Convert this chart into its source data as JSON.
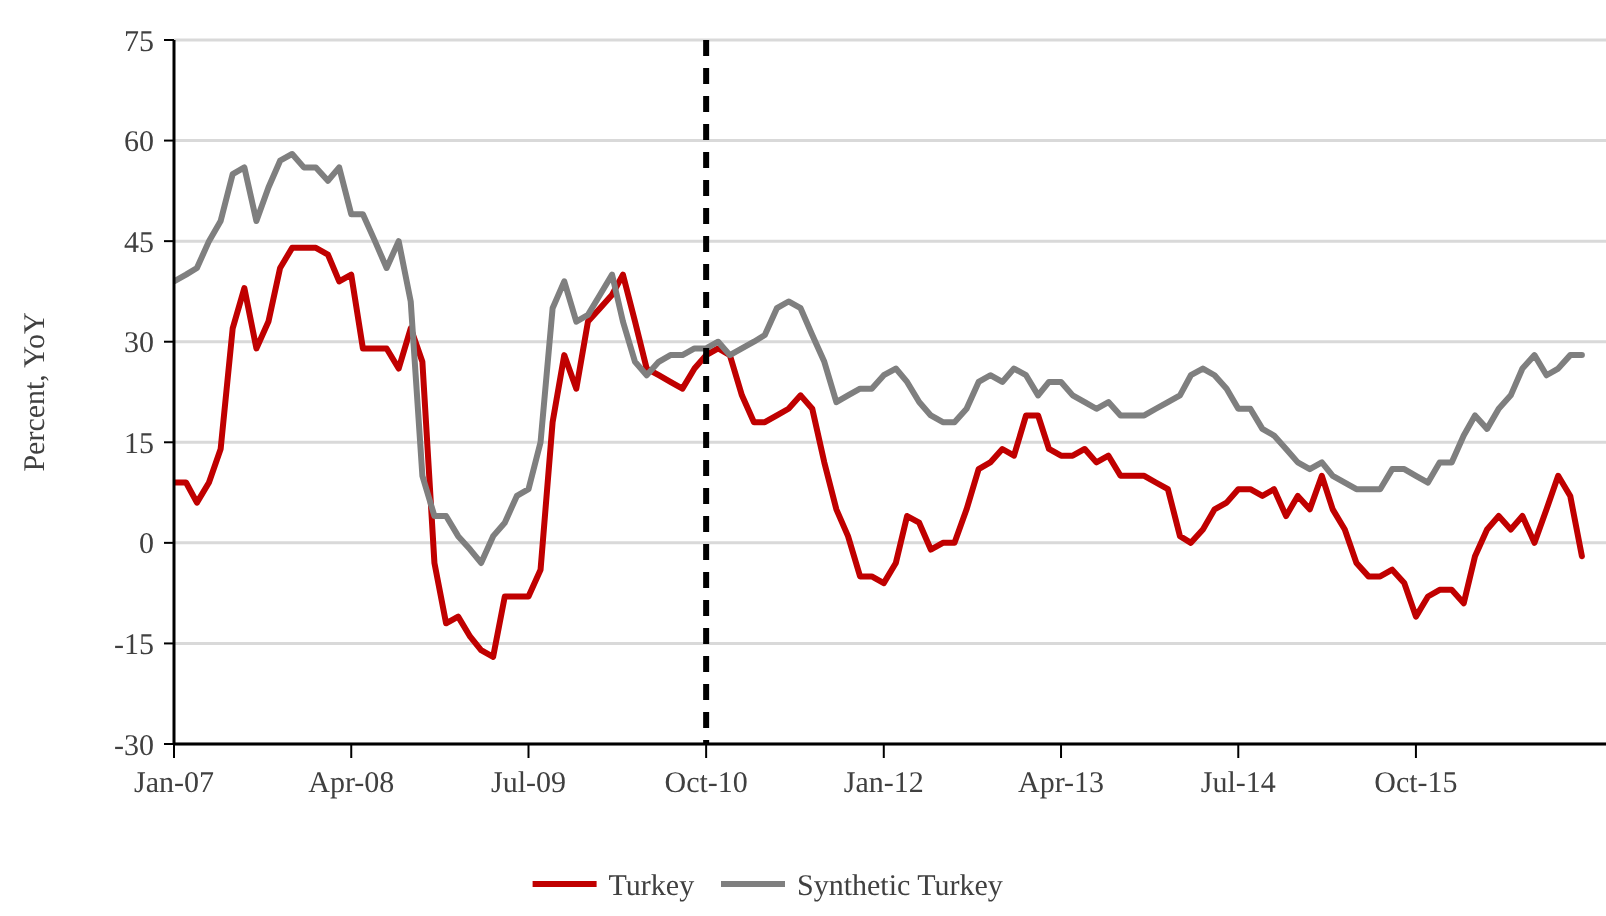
{
  "chart_data": {
    "type": "line",
    "ylabel": "Percent, YoY",
    "x": [
      "2007-01",
      "2007-02",
      "2007-03",
      "2007-04",
      "2007-05",
      "2007-06",
      "2007-07",
      "2007-08",
      "2007-09",
      "2007-10",
      "2007-11",
      "2007-12",
      "2008-01",
      "2008-02",
      "2008-03",
      "2008-04",
      "2008-05",
      "2008-06",
      "2008-07",
      "2008-08",
      "2008-09",
      "2008-10",
      "2008-11",
      "2008-12",
      "2009-01",
      "2009-02",
      "2009-03",
      "2009-04",
      "2009-05",
      "2009-06",
      "2009-07",
      "2009-08",
      "2009-09",
      "2009-10",
      "2009-11",
      "2009-12",
      "2010-01",
      "2010-02",
      "2010-03",
      "2010-04",
      "2010-05",
      "2010-06",
      "2010-07",
      "2010-08",
      "2010-09",
      "2010-10",
      "2010-11",
      "2010-12",
      "2011-01",
      "2011-02",
      "2011-03",
      "2011-04",
      "2011-05",
      "2011-06",
      "2011-07",
      "2011-08",
      "2011-09",
      "2011-10",
      "2011-11",
      "2011-12",
      "2012-01",
      "2012-02",
      "2012-03",
      "2012-04",
      "2012-05",
      "2012-06",
      "2012-07",
      "2012-08",
      "2012-09",
      "2012-10",
      "2012-11",
      "2012-12",
      "2013-01",
      "2013-02",
      "2013-03",
      "2013-04",
      "2013-05",
      "2013-06",
      "2013-07",
      "2013-08",
      "2013-09",
      "2013-10",
      "2013-11",
      "2013-12",
      "2014-01",
      "2014-02",
      "2014-03",
      "2014-04",
      "2014-05",
      "2014-06",
      "2014-07",
      "2014-08",
      "2014-09",
      "2014-10",
      "2014-11",
      "2014-12",
      "2015-01",
      "2015-02",
      "2015-03",
      "2015-04",
      "2015-05",
      "2015-06",
      "2015-07",
      "2015-08",
      "2015-09",
      "2015-10",
      "2015-11",
      "2015-12",
      "2016-01",
      "2016-02",
      "2016-03",
      "2016-04",
      "2016-05",
      "2016-06",
      "2016-07",
      "2016-08",
      "2016-09",
      "2016-10",
      "2016-11",
      "2016-12"
    ],
    "series": [
      {
        "name": "Turkey",
        "color": "#c00000",
        "values": [
          9,
          9,
          6,
          9,
          14,
          32,
          38,
          29,
          33,
          41,
          44,
          44,
          44,
          43,
          39,
          40,
          29,
          29,
          29,
          26,
          32,
          27,
          -3,
          -12,
          -11,
          -14,
          -16,
          -17,
          -8,
          -8,
          -8,
          -4,
          18,
          28,
          23,
          33,
          35,
          37,
          40,
          33,
          26,
          25,
          24,
          23,
          26,
          28,
          29,
          28,
          22,
          18,
          18,
          19,
          20,
          22,
          20,
          12,
          5,
          1,
          -5,
          -5,
          -6,
          -3,
          4,
          3,
          -1,
          0,
          0,
          5,
          11,
          12,
          14,
          13,
          19,
          19,
          14,
          13,
          13,
          14,
          12,
          13,
          10,
          10,
          10,
          9,
          8,
          1,
          0,
          2,
          5,
          6,
          8,
          8,
          7,
          8,
          4,
          7,
          5,
          10,
          5,
          2,
          -3,
          -5,
          -5,
          -4,
          -6,
          -11,
          -8,
          -7,
          -7,
          -9,
          -2,
          2,
          4,
          2,
          4,
          0,
          5,
          10,
          7,
          -2
        ]
      },
      {
        "name": "Synthetic Turkey",
        "color": "#7f7f7f",
        "values": [
          39,
          40,
          41,
          45,
          48,
          55,
          56,
          48,
          53,
          57,
          58,
          56,
          56,
          54,
          56,
          49,
          49,
          45,
          41,
          45,
          36,
          10,
          4,
          4,
          1,
          -1,
          -3,
          1,
          3,
          7,
          8,
          15,
          35,
          39,
          33,
          34,
          37,
          40,
          33,
          27,
          25,
          27,
          28,
          28,
          29,
          29,
          30,
          28,
          29,
          30,
          31,
          35,
          36,
          35,
          31,
          27,
          21,
          22,
          23,
          23,
          25,
          26,
          24,
          21,
          19,
          18,
          18,
          20,
          24,
          25,
          24,
          26,
          25,
          22,
          24,
          24,
          22,
          21,
          20,
          21,
          19,
          19,
          19,
          20,
          21,
          22,
          25,
          26,
          25,
          23,
          20,
          20,
          17,
          16,
          14,
          12,
          11,
          12,
          10,
          9,
          8,
          8,
          8,
          11,
          11,
          10,
          9,
          12,
          12,
          16,
          19,
          17,
          20,
          22,
          26,
          28,
          25,
          26,
          28,
          28
        ]
      }
    ],
    "xlim": [
      "2007-01",
      "2017-02"
    ],
    "xticks": [
      {
        "value": "2007-01",
        "label": "Jan-07"
      },
      {
        "value": "2008-04",
        "label": "Apr-08"
      },
      {
        "value": "2009-07",
        "label": "Jul-09"
      },
      {
        "value": "2010-10",
        "label": "Oct-10"
      },
      {
        "value": "2012-01",
        "label": "Jan-12"
      },
      {
        "value": "2013-04",
        "label": "Apr-13"
      },
      {
        "value": "2014-07",
        "label": "Jul-14"
      },
      {
        "value": "2015-10",
        "label": "Oct-15"
      }
    ],
    "ylim": [
      -30,
      75
    ],
    "yticks": [
      -30,
      -15,
      0,
      15,
      30,
      45,
      60,
      75
    ],
    "ref_lines": [
      {
        "axis": "x",
        "value": "2010-10",
        "color": "#000000",
        "line_style": "dashed"
      }
    ],
    "grid": "y",
    "legend": "bottom",
    "line_style": "solid",
    "marker": "none"
  }
}
